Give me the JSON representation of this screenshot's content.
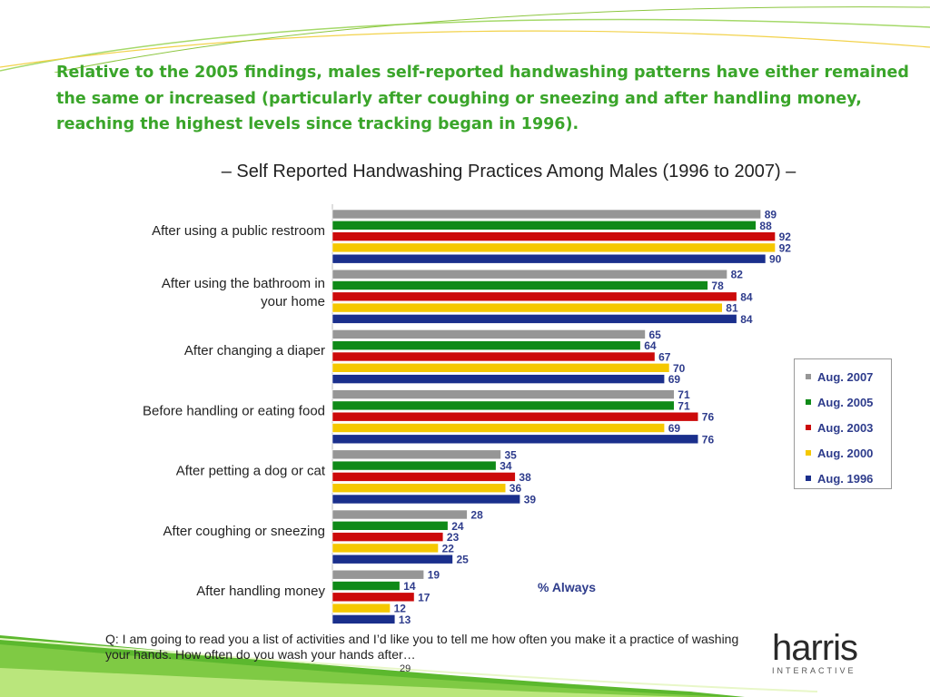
{
  "headline": "Relative to the 2005 findings, males self-reported handwashing patterns have either remained the same or increased (particularly after coughing or sneezing and after handling money, reaching the highest levels since tracking began in 1996).",
  "question": "Q: I am going to read you a list of activities and I’d like you to tell me how often you make it a practice of washing your hands. How often do you wash your hands after…",
  "page_number": "29",
  "logo": {
    "word": "harris",
    "subtitle": "INTERACTIVE"
  },
  "chart_data": {
    "type": "bar",
    "orientation": "horizontal",
    "title": "– Self Reported Handwashing Practices Among Males (1996 to 2007) –",
    "units_label": "% Always",
    "xlim": [
      0,
      100
    ],
    "grid": false,
    "legend_position": "right",
    "categories": [
      [
        "After using a public restroom"
      ],
      [
        "After using the bathroom in",
        "your home"
      ],
      [
        "After changing a diaper"
      ],
      [
        "Before handling or eating food"
      ],
      [
        "After petting a dog or cat"
      ],
      [
        "After coughing or sneezing"
      ],
      [
        "After handling money"
      ]
    ],
    "series": [
      {
        "name": "Aug. 2007",
        "color": "#969696",
        "values": [
          89,
          82,
          65,
          71,
          35,
          28,
          19
        ]
      },
      {
        "name": "Aug. 2005",
        "color": "#0f8a18",
        "values": [
          88,
          78,
          64,
          71,
          34,
          24,
          14
        ]
      },
      {
        "name": "Aug. 2003",
        "color": "#cc0a0a",
        "values": [
          92,
          84,
          67,
          76,
          38,
          23,
          17
        ]
      },
      {
        "name": "Aug. 2000",
        "color": "#f5c800",
        "values": [
          92,
          81,
          70,
          69,
          36,
          22,
          12
        ]
      },
      {
        "name": "Aug. 1996",
        "color": "#1a2f8c",
        "values": [
          90,
          84,
          69,
          76,
          39,
          25,
          13
        ]
      }
    ]
  }
}
